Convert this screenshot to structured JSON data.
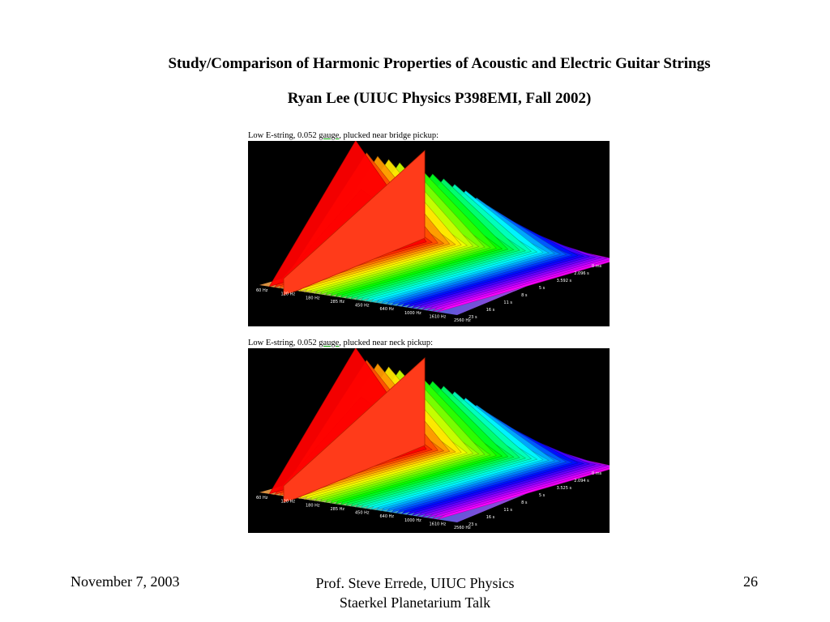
{
  "slide": {
    "title": "Study/Comparison of Harmonic Properties of Acoustic and Electric Guitar Strings",
    "subtitle": "Ryan Lee (UIUC Physics P398EMI, Fall 2002)"
  },
  "panels": [
    {
      "caption_pre": "Low E-string, 0.052 ",
      "caption_link": "gauge",
      "caption_post": ", plucked near bridge pickup:",
      "freq_ticks": [
        "60 Hz",
        "120 Hz",
        "180 Hz",
        "285 Hz",
        "450 Hz",
        "640 Hz",
        "1000 Hz",
        "1610 Hz",
        "2560 Hz"
      ],
      "time_ticks": [
        "0 ms",
        "2.096 s",
        "3.592 s",
        "5 s",
        "8 s",
        "11 s",
        "16 s",
        "23 s"
      ]
    },
    {
      "caption_pre": "Low E-string, 0.052 ",
      "caption_link": "gauge",
      "caption_post": ", plucked near neck pickup:",
      "freq_ticks": [
        "60 Hz",
        "120 Hz",
        "180 Hz",
        "285 Hz",
        "450 Hz",
        "640 Hz",
        "1000 Hz",
        "1610 Hz",
        "2560 Hz"
      ],
      "time_ticks": [
        "0 ms",
        "2.094 s",
        "3.525 s",
        "5 s",
        "8 s",
        "11 s",
        "16 s",
        "23 s"
      ]
    }
  ],
  "footer": {
    "date": "November 7, 2003",
    "center_line1": "Prof. Steve Errede, UIUC Physics",
    "center_line2": "Staerkel Planetarium Talk",
    "page_number": "26"
  }
}
